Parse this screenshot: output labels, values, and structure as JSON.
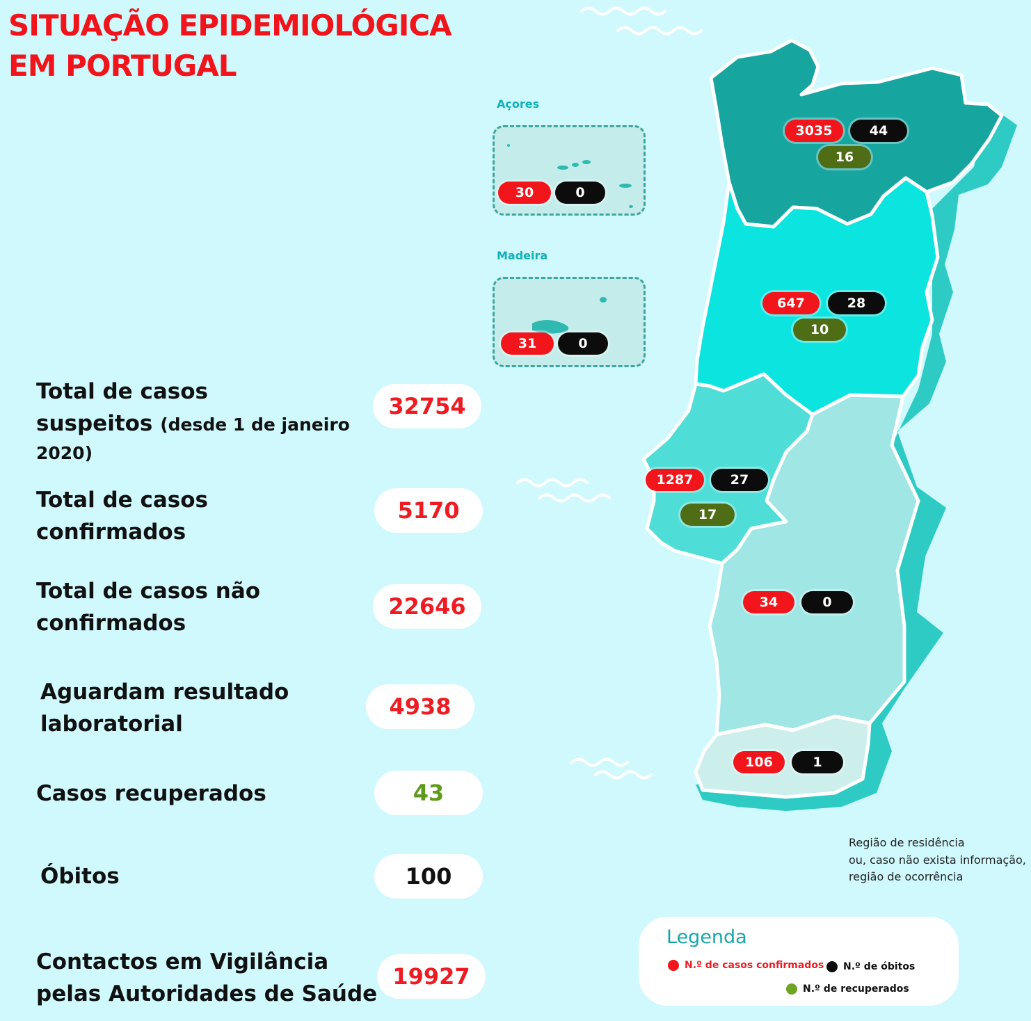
{
  "title": {
    "line1": "SITUAÇÃO EPIDEMIOLÓGICA",
    "line2": "EM PORTUGAL"
  },
  "colors": {
    "accent_red": "#f2161c",
    "deaths_black": "#0c0c0c",
    "recovered_green": "#4f6d14",
    "background": "#cff9fd"
  },
  "stats": [
    {
      "label_line1": "Total de casos",
      "label_line2": "suspeitos",
      "label_note": "(desde 1 de janeiro",
      "label_line3": "2020)",
      "value": "32754"
    },
    {
      "label_line1": "Total de casos",
      "label_line2": "confirmados",
      "value": "5170"
    },
    {
      "label_line1": "Total de casos não",
      "label_line2": "confirmados",
      "value": "22646"
    },
    {
      "label_line1": "Aguardam resultado",
      "label_line2": "laboratorial",
      "value": "4938"
    },
    {
      "label_line1": "Casos recuperados",
      "value": "43"
    },
    {
      "label_line1": "Óbitos",
      "value": "100"
    },
    {
      "label_line1": "Contactos em Vigilância",
      "label_line2": "pelas Autoridades de Saúde",
      "value": "19927"
    }
  ],
  "islands": {
    "acores": {
      "label": "Açores",
      "confirmed": "30",
      "deaths": "0"
    },
    "madeira": {
      "label": "Madeira",
      "confirmed": "31",
      "deaths": "0"
    }
  },
  "regions": {
    "norte": {
      "confirmed": "3035",
      "deaths": "44",
      "recovered": "16"
    },
    "centro": {
      "confirmed": "647",
      "deaths": "28",
      "recovered": "10"
    },
    "lisboa": {
      "confirmed": "1287",
      "deaths": "27",
      "recovered": "17"
    },
    "alentejo": {
      "confirmed": "34",
      "deaths": "0"
    },
    "algarve": {
      "confirmed": "106",
      "deaths": "1"
    }
  },
  "note": {
    "line1": "Região de residência",
    "line2": "ou, caso não exista informação,",
    "line3": "região de ocorrência"
  },
  "legend": {
    "title": "Legenda",
    "confirmed": "N.º de casos confirmados",
    "deaths": "N.º de óbitos",
    "recovered": "N.º de recuperados"
  }
}
